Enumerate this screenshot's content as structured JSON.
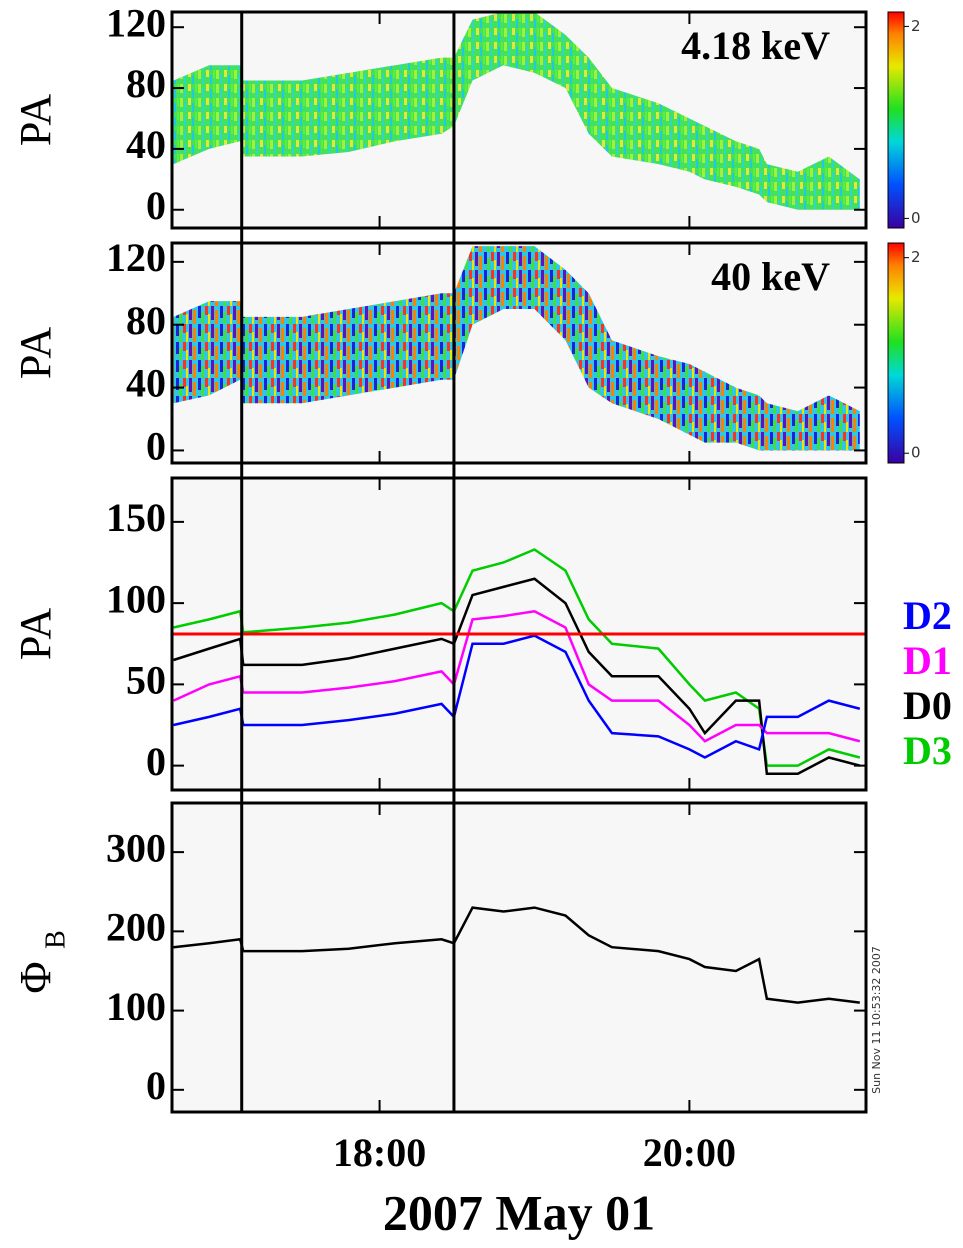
{
  "timestamp": "Sun Nov 11 10:53:32 2007",
  "vlines": [
    17.11,
    18.48
  ],
  "chart_data": [
    {
      "type": "spectrogram",
      "ylabel": "PA",
      "annotation": "4.18 keV",
      "x": [
        16.67,
        16.9,
        17.1,
        17.12,
        17.5,
        17.8,
        18.1,
        18.4,
        18.48,
        18.6,
        18.8,
        19.0,
        19.2,
        19.35,
        19.5,
        19.8,
        20.0,
        20.1,
        20.3,
        20.45,
        20.5,
        20.7,
        20.9,
        21.1
      ],
      "lower": [
        30,
        40,
        45,
        35,
        35,
        38,
        45,
        50,
        55,
        85,
        95,
        90,
        80,
        50,
        35,
        30,
        25,
        20,
        15,
        10,
        5,
        0,
        0,
        0
      ],
      "upper": [
        85,
        95,
        95,
        85,
        85,
        90,
        95,
        100,
        100,
        125,
        130,
        130,
        115,
        100,
        80,
        70,
        60,
        55,
        45,
        40,
        30,
        25,
        35,
        20
      ],
      "xlim": [
        16.66,
        21.14
      ],
      "ylim": [
        -12,
        130
      ],
      "yticks": [
        0,
        40,
        80,
        120
      ],
      "colorbar": {
        "lim": [
          -0.1,
          2.15
        ],
        "ticks": [
          0,
          2
        ]
      }
    },
    {
      "type": "spectrogram",
      "ylabel": "PA",
      "annotation": "40 keV",
      "x": [
        16.67,
        16.9,
        17.1,
        17.12,
        17.5,
        17.8,
        18.1,
        18.4,
        18.48,
        18.6,
        18.8,
        19.0,
        19.2,
        19.35,
        19.5,
        19.8,
        20.0,
        20.1,
        20.3,
        20.45,
        20.5,
        20.7,
        20.9,
        21.1
      ],
      "lower": [
        30,
        35,
        45,
        30,
        30,
        35,
        40,
        45,
        45,
        80,
        90,
        90,
        70,
        40,
        30,
        20,
        10,
        5,
        5,
        0,
        0,
        0,
        0,
        0
      ],
      "upper": [
        85,
        95,
        95,
        85,
        85,
        90,
        95,
        100,
        100,
        130,
        130,
        130,
        115,
        100,
        70,
        60,
        55,
        50,
        40,
        35,
        30,
        25,
        35,
        25
      ],
      "xlim": [
        16.66,
        21.14
      ],
      "ylim": [
        -8,
        132
      ],
      "yticks": [
        0,
        40,
        80,
        120
      ],
      "colorbar": {
        "lim": [
          -0.1,
          2.15
        ],
        "ticks": [
          0,
          2
        ]
      }
    },
    {
      "type": "line",
      "ylabel": "PA",
      "x": [
        16.67,
        16.9,
        17.1,
        17.12,
        17.5,
        17.8,
        18.1,
        18.4,
        18.48,
        18.6,
        18.8,
        19.0,
        19.2,
        19.35,
        19.5,
        19.8,
        20.0,
        20.1,
        20.3,
        20.45,
        20.5,
        20.7,
        20.9,
        21.1
      ],
      "series": [
        {
          "name": "D2",
          "color": "#0000ff",
          "values": [
            25,
            30,
            35,
            25,
            25,
            28,
            32,
            38,
            30,
            75,
            75,
            80,
            70,
            40,
            20,
            18,
            10,
            5,
            15,
            10,
            30,
            30,
            40,
            35
          ]
        },
        {
          "name": "D1",
          "color": "#ff00ff",
          "values": [
            40,
            50,
            55,
            45,
            45,
            48,
            52,
            58,
            50,
            90,
            92,
            95,
            85,
            50,
            40,
            40,
            25,
            15,
            25,
            25,
            20,
            20,
            20,
            15
          ]
        },
        {
          "name": "D0",
          "color": "#000000",
          "values": [
            65,
            72,
            78,
            62,
            62,
            66,
            72,
            78,
            75,
            105,
            110,
            115,
            100,
            70,
            55,
            55,
            35,
            20,
            40,
            40,
            -5,
            -5,
            5,
            0
          ]
        },
        {
          "name": "D3",
          "color": "#00cc00",
          "values": [
            85,
            90,
            95,
            82,
            85,
            88,
            93,
            100,
            95,
            120,
            125,
            133,
            120,
            90,
            75,
            72,
            50,
            40,
            45,
            35,
            0,
            0,
            10,
            5
          ]
        }
      ],
      "hline": {
        "value": 81,
        "color": "#ff0000"
      },
      "xlim": [
        16.66,
        21.14
      ],
      "ylim": [
        -15,
        177
      ],
      "yticks": [
        0,
        50,
        100,
        150
      ]
    },
    {
      "type": "line",
      "ylabel": "Φ",
      "ylabel_sub": "B",
      "x": [
        16.67,
        16.9,
        17.1,
        17.12,
        17.5,
        17.8,
        18.1,
        18.4,
        18.48,
        18.6,
        18.8,
        19.0,
        19.2,
        19.35,
        19.5,
        19.8,
        20.0,
        20.1,
        20.3,
        20.45,
        20.5,
        20.7,
        20.9,
        21.1
      ],
      "series": [
        {
          "color": "#000000",
          "values": [
            180,
            185,
            190,
            175,
            175,
            178,
            185,
            190,
            185,
            230,
            225,
            230,
            220,
            195,
            180,
            175,
            165,
            155,
            150,
            165,
            115,
            110,
            115,
            110
          ]
        }
      ],
      "xlim": [
        16.66,
        21.14
      ],
      "ylim": [
        -28,
        362
      ],
      "yticks": [
        0,
        100,
        200,
        300
      ],
      "xticks": [
        {
          "value": 18,
          "label": "18:00"
        },
        {
          "value": 20,
          "label": "20:00"
        }
      ],
      "xlabel": "2007 May 01"
    }
  ]
}
